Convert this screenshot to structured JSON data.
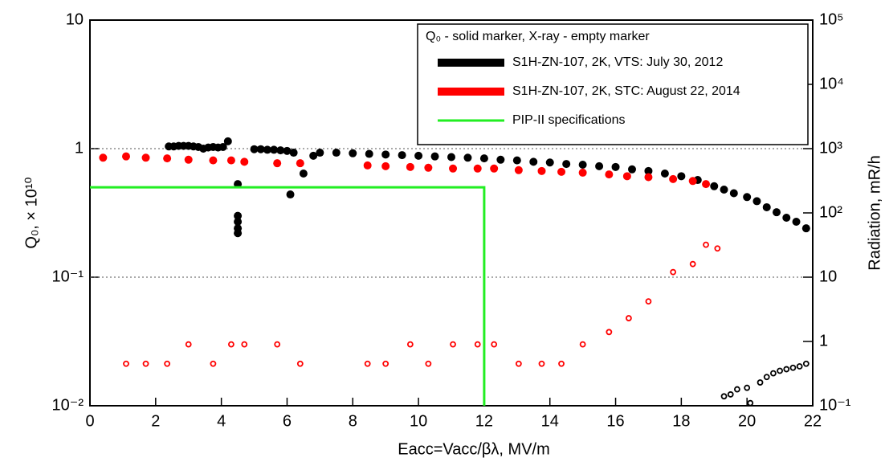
{
  "chart_data": {
    "type": "scatter",
    "xlabel": "Eacc=Vacc/βλ, MV/m",
    "ylabel": "Q₀, × 10¹⁰",
    "y2label": "Radiation, mR/h",
    "legend_title": "Q₀ - solid marker, X-ray - empty marker",
    "legend": "upper right",
    "log_y": true,
    "log_y2": true,
    "grid": "y",
    "xlim": [
      0,
      22
    ],
    "xticks": [
      0,
      2,
      4,
      6,
      8,
      10,
      12,
      14,
      16,
      18,
      20,
      22
    ],
    "ylim": [
      0.01,
      10
    ],
    "yticks": [
      {
        "value": 0.01,
        "label": "10⁻²"
      },
      {
        "value": 0.1,
        "label": "10⁻¹"
      },
      1,
      10
    ],
    "y2lim": [
      0.1,
      100000
    ],
    "y2ticks": [
      {
        "value": 0.1,
        "label": "10⁻¹"
      },
      1,
      10,
      {
        "value": 100,
        "label": "10²"
      },
      {
        "value": 1000,
        "label": "10³"
      },
      {
        "value": 10000,
        "label": "10⁴"
      },
      {
        "value": 100000,
        "label": "10⁵"
      }
    ],
    "series": [
      {
        "name": "S1H-ZN-107, 2K, VTS: July 30, 2012",
        "color": "#000000",
        "x": [
          2.4,
          2.55,
          2.7,
          2.85,
          3.0,
          3.15,
          3.3,
          3.45,
          3.6,
          3.75,
          3.9,
          4.05,
          4.2,
          4.5,
          4.5,
          4.5,
          4.5,
          4.5,
          5.0,
          5.2,
          5.4,
          5.6,
          5.8,
          6.0,
          6.1,
          6.2,
          6.5,
          6.8,
          7.0,
          7.5,
          8.0,
          8.5,
          9.0,
          9.5,
          10.0,
          10.5,
          11.0,
          11.5,
          12.0,
          12.5,
          13.0,
          13.5,
          14.0,
          14.5,
          15.0,
          15.5,
          16.0,
          16.5,
          17.0,
          17.5,
          18.0,
          18.5,
          19.0,
          19.3,
          19.6,
          20.0,
          20.3,
          20.6,
          20.9,
          21.2,
          21.5,
          21.8
        ],
        "values": [
          1.04,
          1.04,
          1.05,
          1.05,
          1.05,
          1.04,
          1.03,
          1.0,
          1.02,
          1.03,
          1.02,
          1.03,
          1.14,
          0.53,
          0.3,
          0.27,
          0.24,
          0.22,
          0.99,
          0.99,
          0.98,
          0.98,
          0.97,
          0.96,
          0.44,
          0.93,
          0.64,
          0.88,
          0.93,
          0.93,
          0.92,
          0.91,
          0.9,
          0.89,
          0.88,
          0.87,
          0.86,
          0.85,
          0.84,
          0.82,
          0.81,
          0.79,
          0.78,
          0.76,
          0.75,
          0.73,
          0.72,
          0.69,
          0.67,
          0.64,
          0.61,
          0.57,
          0.51,
          0.48,
          0.45,
          0.42,
          0.39,
          0.35,
          0.32,
          0.29,
          0.27,
          0.24
        ],
        "radiation": {
          "x": [
            19.3,
            19.5,
            19.7,
            20.0,
            20.1,
            20.4,
            20.6,
            20.8,
            21.0,
            21.2,
            21.4,
            21.6,
            21.8
          ],
          "values": [
            0.14,
            0.15,
            0.18,
            0.19,
            0.11,
            0.23,
            0.28,
            0.32,
            0.35,
            0.37,
            0.39,
            0.41,
            0.45
          ]
        }
      },
      {
        "name": "S1H-ZN-107, 2K, STC: August 22, 2014",
        "color": "#ff0000",
        "x": [
          0.4,
          1.1,
          1.7,
          2.35,
          3.0,
          3.75,
          4.3,
          4.7,
          5.7,
          6.4,
          8.45,
          9.0,
          9.75,
          10.3,
          11.05,
          11.8,
          12.3,
          13.05,
          13.75,
          14.35,
          15.0,
          15.8,
          16.35,
          17.0,
          17.75,
          18.35,
          18.75
        ],
        "values": [
          0.85,
          0.87,
          0.85,
          0.84,
          0.82,
          0.81,
          0.81,
          0.79,
          0.77,
          0.77,
          0.74,
          0.73,
          0.72,
          0.71,
          0.7,
          0.7,
          0.7,
          0.68,
          0.67,
          0.66,
          0.65,
          0.63,
          0.61,
          0.6,
          0.58,
          0.56,
          0.53
        ],
        "radiation": {
          "x": [
            1.1,
            1.7,
            2.35,
            3.0,
            3.75,
            4.3,
            4.7,
            5.7,
            6.4,
            8.45,
            9.0,
            9.75,
            10.3,
            11.05,
            11.8,
            12.3,
            13.05,
            13.75,
            14.35,
            15.0,
            15.8,
            16.4,
            17.0,
            17.75,
            18.35,
            18.75,
            19.1
          ],
          "values": [
            0.45,
            0.45,
            0.45,
            0.9,
            0.45,
            0.9,
            0.9,
            0.9,
            0.45,
            0.45,
            0.45,
            0.9,
            0.45,
            0.9,
            0.9,
            0.9,
            0.45,
            0.45,
            0.45,
            0.9,
            1.4,
            2.3,
            4.2,
            12,
            16,
            32,
            28
          ]
        }
      },
      {
        "name": "PIP-II specifications",
        "color": "#22ee22",
        "line": true,
        "x": [
          0,
          12,
          12
        ],
        "values": [
          0.5,
          0.5,
          0.01
        ]
      }
    ]
  }
}
